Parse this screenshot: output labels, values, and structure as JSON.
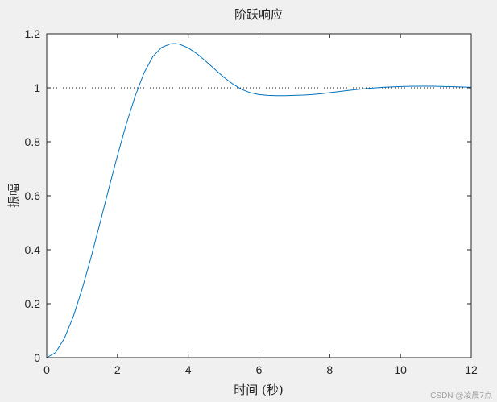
{
  "chart_data": {
    "type": "line",
    "title": "阶跃响应",
    "xlabel": "时间 (秒)",
    "ylabel": "振幅",
    "xlim": [
      0,
      12
    ],
    "ylim": [
      0,
      1.2
    ],
    "xticks": [
      "0",
      "2",
      "4",
      "6",
      "8",
      "10",
      "12"
    ],
    "yticks": [
      "0",
      "0.2",
      "0.4",
      "0.6",
      "0.8",
      "1",
      "1.2"
    ],
    "reference_line": {
      "y": 1,
      "style": "dotted"
    },
    "grid": false,
    "series": [
      {
        "color": "#0072bd",
        "x": [
          0,
          0.25,
          0.5,
          0.75,
          1.0,
          1.25,
          1.5,
          1.75,
          2.0,
          2.25,
          2.5,
          2.75,
          3.0,
          3.25,
          3.5,
          3.63,
          3.75,
          4.0,
          4.25,
          4.5,
          4.75,
          5.0,
          5.25,
          5.5,
          5.75,
          6.0,
          6.25,
          6.5,
          6.75,
          7.0,
          7.25,
          7.5,
          7.75,
          8.0,
          8.5,
          9.0,
          9.5,
          10.0,
          10.5,
          10.9,
          11.25,
          11.5,
          11.75,
          12.0
        ],
        "values": [
          0,
          0.019,
          0.072,
          0.152,
          0.254,
          0.37,
          0.496,
          0.624,
          0.749,
          0.866,
          0.969,
          1.055,
          1.116,
          1.15,
          1.163,
          1.164,
          1.162,
          1.148,
          1.126,
          1.098,
          1.069,
          1.04,
          1.015,
          0.995,
          0.982,
          0.975,
          0.972,
          0.971,
          0.971,
          0.972,
          0.973,
          0.975,
          0.978,
          0.982,
          0.99,
          0.997,
          1.002,
          1.005,
          1.006,
          1.006,
          1.005,
          1.004,
          1.003,
          1.002
        ]
      }
    ]
  },
  "colors": {
    "figure_background": "#f0f0f0",
    "axes_background": "#ffffff",
    "axis_color": "#262626",
    "line_color": "#0072bd"
  },
  "watermark": "CSDN @凌晨7点"
}
